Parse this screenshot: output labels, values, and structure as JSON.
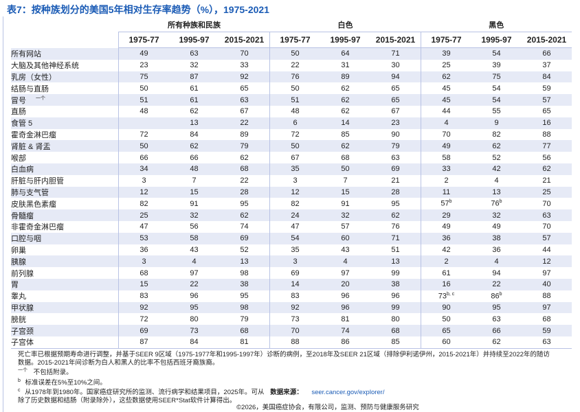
{
  "title": "表7：按种族划分的美国5年相对生存率趋势（%），1975-2021",
  "groups": [
    "所有种族和民族",
    "白色",
    "黑色"
  ],
  "periods": [
    "1975-77",
    "1995-97",
    "2015-2021"
  ],
  "rows": [
    {
      "label": "所有网站",
      "cells": [
        "49",
        "63",
        "70",
        "50",
        "64",
        "71",
        "39",
        "54",
        "66"
      ]
    },
    {
      "label": "大脑及其他神经系统",
      "cells": [
        "23",
        "32",
        "33",
        "22",
        "31",
        "30",
        "25",
        "39",
        "37"
      ]
    },
    {
      "label": "乳房（女性）",
      "cells": [
        "75",
        "87",
        "92",
        "76",
        "89",
        "94",
        "62",
        "75",
        "84"
      ]
    },
    {
      "label": "结肠与直肠",
      "cells": [
        "50",
        "61",
        "65",
        "50",
        "62",
        "65",
        "45",
        "54",
        "59"
      ]
    },
    {
      "label": "冒号",
      "note": "一个",
      "cells": [
        "51",
        "61",
        "63",
        "51",
        "62",
        "65",
        "45",
        "54",
        "57"
      ]
    },
    {
      "label": "直肠",
      "cells": [
        "48",
        "62",
        "67",
        "48",
        "62",
        "67",
        "44",
        "55",
        "65"
      ]
    },
    {
      "label": "食管 5",
      "cells": [
        "",
        "13",
        "22",
        "6",
        "14",
        "23",
        "4",
        "9",
        "16"
      ]
    },
    {
      "label": "霍奇金淋巴瘤",
      "cells": [
        "72",
        "84",
        "89",
        "72",
        "85",
        "90",
        "70",
        "82",
        "88"
      ]
    },
    {
      "label": "肾脏 & 肾盂",
      "cells": [
        "50",
        "62",
        "79",
        "50",
        "62",
        "79",
        "49",
        "62",
        "77"
      ]
    },
    {
      "label": "喉部",
      "cells": [
        "66",
        "66",
        "62",
        "67",
        "68",
        "63",
        "58",
        "52",
        "56"
      ]
    },
    {
      "label": "白血病",
      "cells": [
        "34",
        "48",
        "68",
        "35",
        "50",
        "69",
        "33",
        "42",
        "62"
      ]
    },
    {
      "label": "肝脏与肝内胆管",
      "cells": [
        "3",
        "7",
        "22",
        "3",
        "7",
        "21",
        "2",
        "4",
        "21"
      ]
    },
    {
      "label": "肺与支气管",
      "cells": [
        "12",
        "15",
        "28",
        "12",
        "15",
        "28",
        "11",
        "13",
        "25"
      ]
    },
    {
      "label": "皮肤黑色素瘤",
      "cells": [
        "82",
        "91",
        "95",
        "82",
        "91",
        "95",
        "57",
        "76",
        "70"
      ],
      "sups": {
        "6": "b",
        "7": "b"
      }
    },
    {
      "label": "骨髓瘤",
      "cells": [
        "25",
        "32",
        "62",
        "24",
        "32",
        "62",
        "29",
        "32",
        "63"
      ]
    },
    {
      "label": "非霍奇金淋巴瘤",
      "cells": [
        "47",
        "56",
        "74",
        "47",
        "57",
        "76",
        "49",
        "49",
        "70"
      ]
    },
    {
      "label": "口腔与咽",
      "cells": [
        "53",
        "58",
        "69",
        "54",
        "60",
        "71",
        "36",
        "38",
        "57"
      ]
    },
    {
      "label": "卵巢",
      "cells": [
        "36",
        "43",
        "52",
        "35",
        "43",
        "51",
        "42",
        "36",
        "44"
      ]
    },
    {
      "label": "胰腺",
      "cells": [
        "3",
        "4",
        "13",
        "3",
        "4",
        "13",
        "2",
        "4",
        "12"
      ]
    },
    {
      "label": "前列腺",
      "cells": [
        "68",
        "97",
        "98",
        "69",
        "97",
        "99",
        "61",
        "94",
        "97"
      ]
    },
    {
      "label": "胃",
      "cells": [
        "15",
        "22",
        "38",
        "14",
        "20",
        "38",
        "16",
        "22",
        "40"
      ]
    },
    {
      "label": "睾丸",
      "cells": [
        "83",
        "96",
        "95",
        "83",
        "96",
        "96",
        "73",
        "86",
        "88"
      ],
      "sups": {
        "6": "b, c",
        "7": "b"
      }
    },
    {
      "label": "甲状腺",
      "cells": [
        "92",
        "95",
        "98",
        "92",
        "96",
        "99",
        "90",
        "95",
        "97"
      ]
    },
    {
      "label": "膀胱",
      "cells": [
        "72",
        "80",
        "79",
        "73",
        "81",
        "80",
        "50",
        "63",
        "68"
      ]
    },
    {
      "label": "子宫颈",
      "cells": [
        "69",
        "73",
        "68",
        "70",
        "74",
        "68",
        "65",
        "66",
        "59"
      ]
    },
    {
      "label": "子宫体",
      "cells": [
        "87",
        "84",
        "81",
        "88",
        "86",
        "85",
        "60",
        "62",
        "63"
      ]
    }
  ],
  "notes": {
    "main": "死亡率已根据预期寿命进行调整，并基于SEER 9区域（1975-1977年和1995-1997年）诊断的病例，至2018年及SEER 21区域（排除伊利诺伊州，2015-2021年）并持续至2022年的随访数据。2015-2021年间诊断为白人和黑人的比率不包括西班牙裔族裔。",
    "a_marker": "一个",
    "a_text": "不包括附录。",
    "b_marker": "b",
    "b_text": "标准误差在5%至10%之间。",
    "c_marker": "c",
    "c_text": "从1978年到1980年。国家癌症研究所的监测、流行病学和结果项目，2025年。可从",
    "source_label": "数据来源：",
    "source_link": "seer.cancer.gov/explorer/",
    "last": "除了历史数据和结肠（附录除外），这些数据使用SEER*Stat软件计算得出。"
  },
  "footer": "©2026，美国癌症协会，有限公司，监测、预防与健康服务研究"
}
